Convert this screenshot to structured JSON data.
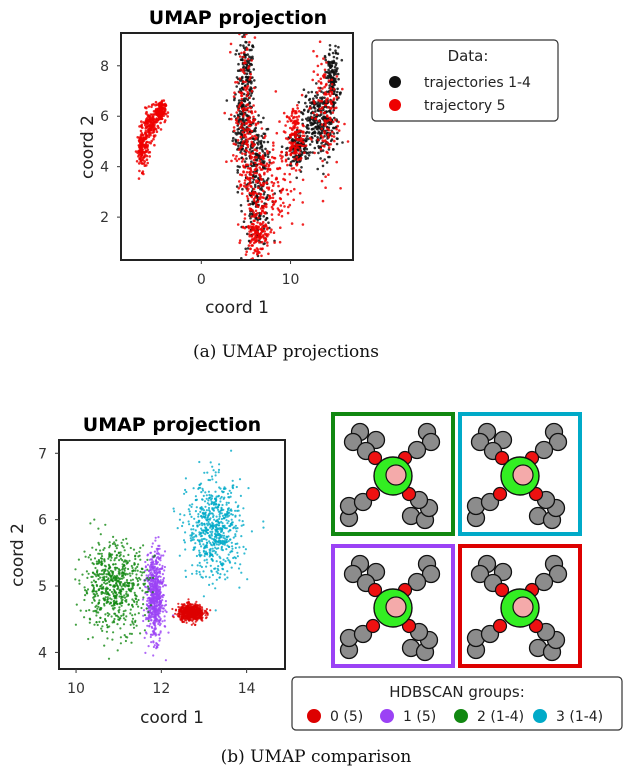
{
  "chart_data": [
    {
      "type": "scatter",
      "title": "UMAP projection",
      "xlabel": "coord 1",
      "ylabel": "coord 2",
      "xlim": [
        -9,
        17
      ],
      "ylim": [
        0.3,
        9.3
      ],
      "x_ticks": [
        0,
        10
      ],
      "y_ticks": [
        2,
        4,
        6,
        8
      ],
      "legend_title": "Data:",
      "legend_position": "right",
      "series": [
        {
          "name": "trajectories 1-4",
          "color": "#111111",
          "clusters": [
            {
              "cx": 5.0,
              "cy": 7.6,
              "sx": 0.5,
              "sy": 0.8
            },
            {
              "cx": 4.6,
              "cy": 5.7,
              "sx": 0.5,
              "sy": 0.8
            },
            {
              "cx": 6.2,
              "cy": 4.4,
              "sx": 0.8,
              "sy": 0.7
            },
            {
              "cx": 6.3,
              "cy": 2.4,
              "sx": 0.8,
              "sy": 0.8
            },
            {
              "cx": 10.8,
              "cy": 4.7,
              "sx": 0.6,
              "sy": 0.4
            },
            {
              "cx": 12.5,
              "cy": 5.9,
              "sx": 0.6,
              "sy": 0.6
            },
            {
              "cx": 14.7,
              "cy": 7.5,
              "sx": 0.4,
              "sy": 0.6
            },
            {
              "cx": 14.0,
              "cy": 5.6,
              "sx": 0.7,
              "sy": 0.6
            }
          ]
        },
        {
          "name": "trajectory 5",
          "color": "#ee0000",
          "clusters": [
            {
              "cx": -6.6,
              "cy": 4.7,
              "sx": 0.3,
              "sy": 0.4
            },
            {
              "cx": -5.7,
              "cy": 5.6,
              "sx": 0.4,
              "sy": 0.3
            },
            {
              "cx": -4.6,
              "cy": 6.2,
              "sx": 0.3,
              "sy": 0.2
            },
            {
              "cx": 4.8,
              "cy": 6.3,
              "sx": 0.6,
              "sy": 1.4
            },
            {
              "cx": 6.0,
              "cy": 3.6,
              "sx": 1.0,
              "sy": 1.2
            },
            {
              "cx": 6.3,
              "cy": 1.4,
              "sx": 0.7,
              "sy": 0.5
            },
            {
              "cx": 10.5,
              "cy": 5.2,
              "sx": 0.5,
              "sy": 0.6
            },
            {
              "cx": 13.8,
              "cy": 6.2,
              "sx": 0.8,
              "sy": 1.2
            },
            {
              "cx": 7.8,
              "cy": 3.4,
              "sx": 1.5,
              "sy": 1.0
            }
          ]
        }
      ],
      "caption": "(a) UMAP projections"
    },
    {
      "type": "scatter",
      "title": "UMAP projection",
      "xlabel": "coord 1",
      "ylabel": "coord 2",
      "xlim": [
        9.6,
        14.9
      ],
      "ylim": [
        3.75,
        7.2
      ],
      "x_ticks": [
        10,
        12,
        14
      ],
      "y_ticks": [
        4,
        5,
        6,
        7
      ],
      "legend_title": "HDBSCAN groups:",
      "legend_position": "bottom-right",
      "series": [
        {
          "name": "0 (5)",
          "color": "#dd0000",
          "clusters": [
            {
              "cx": 12.7,
              "cy": 4.6,
              "sx": 0.15,
              "sy": 0.06
            }
          ]
        },
        {
          "name": "1 (5)",
          "color": "#9b42f5",
          "clusters": [
            {
              "cx": 11.85,
              "cy": 4.85,
              "sx": 0.1,
              "sy": 0.32
            }
          ]
        },
        {
          "name": "2 (1-4)",
          "color": "#118811",
          "clusters": [
            {
              "cx": 10.9,
              "cy": 5.0,
              "sx": 0.38,
              "sy": 0.33
            }
          ]
        },
        {
          "name": "3 (1-4)",
          "color": "#00aac8",
          "clusters": [
            {
              "cx": 13.25,
              "cy": 5.85,
              "sx": 0.32,
              "sy": 0.36
            }
          ]
        }
      ],
      "caption": "(b) UMAP comparison"
    }
  ],
  "molecules": [
    {
      "frame_color": "#118811"
    },
    {
      "frame_color": "#00aac8"
    },
    {
      "frame_color": "#9b42f5"
    },
    {
      "frame_color": "#dd0000"
    }
  ]
}
